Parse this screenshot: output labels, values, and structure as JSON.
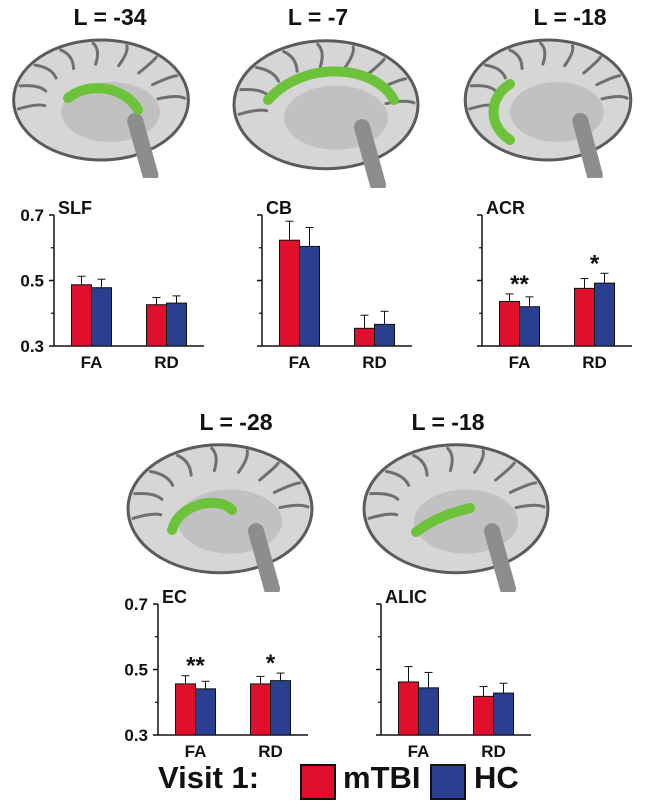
{
  "colors": {
    "mtbi": "#e0102c",
    "hc": "#2a3f8f",
    "tract": "#6cc33a"
  },
  "brains": [
    {
      "label": "L = -34",
      "shape": "arc-short"
    },
    {
      "label": "L = -7",
      "shape": "arc-long"
    },
    {
      "label": "L = -18",
      "shape": "arc-vertical"
    },
    {
      "label": "L = -28",
      "shape": "blob"
    },
    {
      "label": "L = -18",
      "shape": "diag"
    }
  ],
  "chart_data": [
    {
      "type": "bar",
      "title": "SLF",
      "categories": [
        "FA",
        "RD"
      ],
      "ylim": [
        0.3,
        0.7
      ],
      "yticks": [
        "0.3",
        "0.5",
        "0.7"
      ],
      "show_yticks": true,
      "series": [
        {
          "name": "mTBI",
          "values": [
            0.487,
            0.426
          ],
          "err": [
            0.026,
            0.022
          ]
        },
        {
          "name": "HC",
          "values": [
            0.478,
            0.431
          ],
          "err": [
            0.026,
            0.022
          ]
        }
      ],
      "annotations": [
        "",
        ""
      ]
    },
    {
      "type": "bar",
      "title": "CB",
      "categories": [
        "FA",
        "RD"
      ],
      "ylim": [
        0.3,
        0.7
      ],
      "yticks": [
        "0.3",
        "0.5",
        "0.7"
      ],
      "show_yticks": false,
      "series": [
        {
          "name": "mTBI",
          "values": [
            0.623,
            0.354
          ],
          "err": [
            0.058,
            0.04
          ]
        },
        {
          "name": "HC",
          "values": [
            0.604,
            0.366
          ],
          "err": [
            0.058,
            0.04
          ]
        }
      ],
      "annotations": [
        "",
        ""
      ]
    },
    {
      "type": "bar",
      "title": "ACR",
      "categories": [
        "FA",
        "RD"
      ],
      "ylim": [
        0.3,
        0.7
      ],
      "yticks": [
        "0.3",
        "0.5",
        "0.7"
      ],
      "show_yticks": false,
      "series": [
        {
          "name": "mTBI",
          "values": [
            0.436,
            0.476
          ],
          "err": [
            0.023,
            0.03
          ]
        },
        {
          "name": "HC",
          "values": [
            0.42,
            0.492
          ],
          "err": [
            0.03,
            0.03
          ]
        }
      ],
      "annotations": [
        "**",
        "*"
      ]
    },
    {
      "type": "bar",
      "title": "EC",
      "categories": [
        "FA",
        "RD"
      ],
      "ylim": [
        0.3,
        0.7
      ],
      "yticks": [
        "0.3",
        "0.5",
        "0.7"
      ],
      "show_yticks": true,
      "series": [
        {
          "name": "mTBI",
          "values": [
            0.456,
            0.456
          ],
          "err": [
            0.025,
            0.023
          ]
        },
        {
          "name": "HC",
          "values": [
            0.441,
            0.466
          ],
          "err": [
            0.023,
            0.023
          ]
        }
      ],
      "annotations": [
        "**",
        "*"
      ]
    },
    {
      "type": "bar",
      "title": "ALIC",
      "categories": [
        "FA",
        "RD"
      ],
      "ylim": [
        0.3,
        0.7
      ],
      "yticks": [
        "0.3",
        "0.5",
        "0.7"
      ],
      "show_yticks": false,
      "series": [
        {
          "name": "mTBI",
          "values": [
            0.462,
            0.418
          ],
          "err": [
            0.047,
            0.03
          ]
        },
        {
          "name": "HC",
          "values": [
            0.444,
            0.428
          ],
          "err": [
            0.047,
            0.03
          ]
        }
      ],
      "annotations": [
        "",
        ""
      ]
    }
  ],
  "legend": {
    "prefix": "Visit 1:",
    "items": [
      {
        "label": "mTBI"
      },
      {
        "label": "HC"
      }
    ]
  }
}
